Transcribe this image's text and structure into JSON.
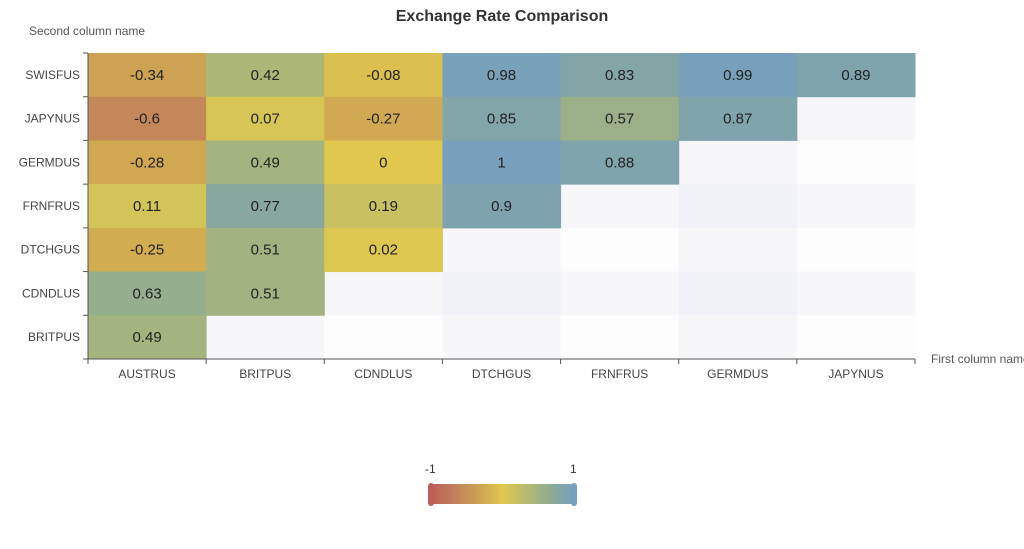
{
  "chart_data": {
    "type": "heatmap",
    "title": "Exchange Rate Comparison",
    "xlabel": "First column name",
    "ylabel": "Second column name",
    "x_categories": [
      "AUSTRUS",
      "BRITPUS",
      "CDNDLUS",
      "DTCHGUS",
      "FRNFRUS",
      "GERMDUS",
      "JAPYNUS"
    ],
    "y_categories": [
      "SWISFUS",
      "JAPYNUS",
      "GERMDUS",
      "FRNFRUS",
      "DTCHGUS",
      "CDNDLUS",
      "BRITPUS"
    ],
    "values": [
      [
        -0.34,
        0.42,
        -0.08,
        0.98,
        0.83,
        0.99,
        0.89
      ],
      [
        -0.6,
        0.07,
        -0.27,
        0.85,
        0.57,
        0.87
      ],
      [
        -0.28,
        0.49,
        0,
        1,
        0.88
      ],
      [
        0.11,
        0.77,
        0.19,
        0.9
      ],
      [
        -0.25,
        0.51,
        0.02
      ],
      [
        0.63,
        0.51
      ],
      [
        0.49
      ]
    ],
    "visual_map": {
      "min": -1,
      "max": 1,
      "min_label": "-1",
      "max_label": "1",
      "colors": [
        "#bd5e58",
        "#c4875a",
        "#cfa652",
        "#e0c84e",
        "#a8b67a",
        "#88a89c",
        "#78a0bc"
      ]
    }
  }
}
